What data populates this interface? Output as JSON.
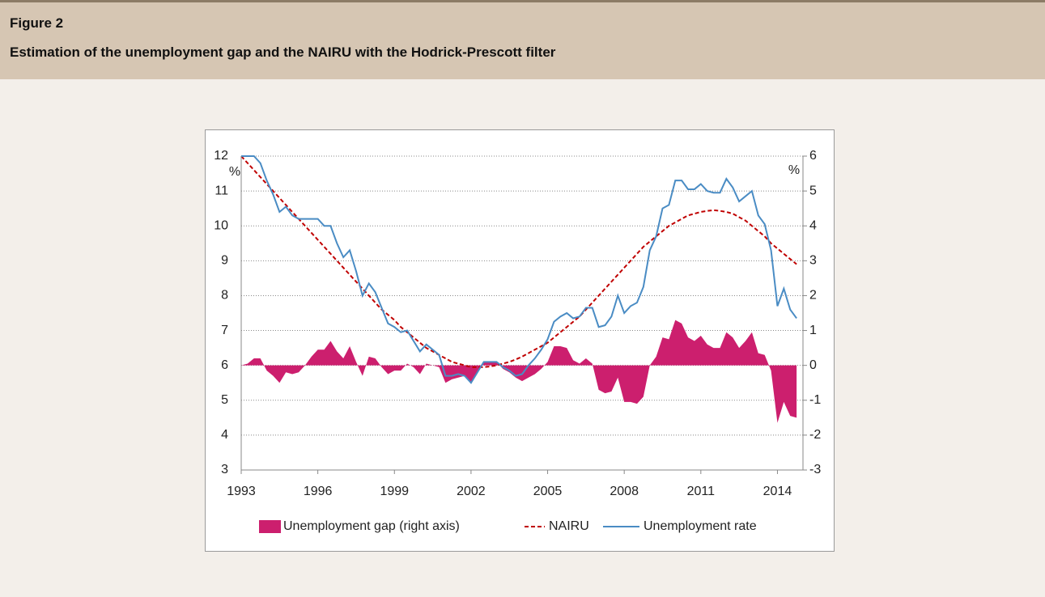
{
  "figure_label": "Figure 2",
  "chart_data": {
    "type": "line",
    "title": "Estimation of the unemployment gap and the NAIRU with the Hodrick-Prescott filter",
    "y_unit": "%",
    "y2_unit": "%",
    "x": [
      1993,
      1993.25,
      1993.5,
      1993.75,
      1994,
      1994.25,
      1994.5,
      1994.75,
      1995,
      1995.25,
      1995.5,
      1995.75,
      1996,
      1996.25,
      1996.5,
      1996.75,
      1997,
      1997.25,
      1997.5,
      1997.75,
      1998,
      1998.25,
      1998.5,
      1998.75,
      1999,
      1999.25,
      1999.5,
      1999.75,
      2000,
      2000.25,
      2000.5,
      2000.75,
      2001,
      2001.25,
      2001.5,
      2001.75,
      2002,
      2002.25,
      2002.5,
      2002.75,
      2003,
      2003.25,
      2003.5,
      2003.75,
      2004,
      2004.25,
      2004.5,
      2004.75,
      2005,
      2005.25,
      2005.5,
      2005.75,
      2006,
      2006.25,
      2006.5,
      2006.75,
      2007,
      2007.25,
      2007.5,
      2007.75,
      2008,
      2008.25,
      2008.5,
      2008.75,
      2009,
      2009.25,
      2009.5,
      2009.75,
      2010,
      2010.25,
      2010.5,
      2010.75,
      2011,
      2011.25,
      2011.5,
      2011.75,
      2012,
      2012.25,
      2012.5,
      2012.75,
      2013,
      2013.25,
      2013.5,
      2013.75,
      2014,
      2014.25,
      2014.5,
      2014.75
    ],
    "series": [
      {
        "name": "Unemployment gap (right axis)",
        "style": "area",
        "axis": "y2",
        "color": "#cc1f6e",
        "values": [
          0,
          0.05,
          0.2,
          0.2,
          -0.15,
          -0.3,
          -0.5,
          -0.2,
          -0.25,
          -0.2,
          0,
          0.25,
          0.45,
          0.45,
          0.7,
          0.4,
          0.2,
          0.55,
          0.1,
          -0.3,
          0.25,
          0.2,
          -0.05,
          -0.25,
          -0.15,
          -0.15,
          0.05,
          -0.05,
          -0.25,
          0.05,
          0,
          -0.05,
          -0.5,
          -0.4,
          -0.35,
          -0.3,
          -0.5,
          -0.2,
          0.1,
          0.1,
          0.1,
          -0.1,
          -0.2,
          -0.35,
          -0.45,
          -0.35,
          -0.25,
          -0.1,
          0.1,
          0.55,
          0.55,
          0.5,
          0.15,
          0.05,
          0.2,
          0.05,
          -0.7,
          -0.8,
          -0.75,
          -0.35,
          -1.05,
          -1.05,
          -1.1,
          -0.9,
          0,
          0.25,
          0.8,
          0.75,
          1.3,
          1.2,
          0.8,
          0.7,
          0.85,
          0.6,
          0.5,
          0.5,
          0.95,
          0.8,
          0.5,
          0.7,
          0.95,
          0.35,
          0.3,
          -0.15,
          -1.65,
          -1.05,
          -1.45,
          -1.5
        ]
      },
      {
        "name": "NAIRU",
        "style": "dashed",
        "color": "#c00000",
        "values": [
          12,
          11.8,
          11.6,
          11.4,
          11.2,
          11,
          10.8,
          10.6,
          10.4,
          10.2,
          10,
          9.8,
          9.6,
          9.4,
          9.2,
          9,
          8.8,
          8.6,
          8.4,
          8.2,
          8,
          7.8,
          7.6,
          7.45,
          7.3,
          7.1,
          6.95,
          6.8,
          6.65,
          6.5,
          6.4,
          6.3,
          6.2,
          6.1,
          6.05,
          6,
          5.95,
          5.95,
          5.95,
          5.97,
          6,
          6.05,
          6.1,
          6.17,
          6.25,
          6.35,
          6.45,
          6.55,
          6.65,
          6.8,
          6.95,
          7.1,
          7.25,
          7.4,
          7.6,
          7.8,
          8,
          8.2,
          8.4,
          8.6,
          8.8,
          9,
          9.2,
          9.4,
          9.55,
          9.7,
          9.85,
          10,
          10.1,
          10.2,
          10.3,
          10.35,
          10.4,
          10.43,
          10.45,
          10.43,
          10.4,
          10.35,
          10.25,
          10.15,
          10,
          9.85,
          9.7,
          9.5,
          9.35,
          9.2,
          9.05,
          8.9
        ]
      },
      {
        "name": "Unemployment rate",
        "style": "solid",
        "color": "#4a8cc4",
        "values": [
          12,
          12,
          12,
          11.8,
          11.3,
          10.9,
          10.4,
          10.55,
          10.3,
          10.2,
          10.2,
          10.2,
          10.2,
          10,
          10,
          9.5,
          9.1,
          9.3,
          8.7,
          8,
          8.35,
          8.1,
          7.65,
          7.2,
          7.1,
          6.95,
          7,
          6.7,
          6.4,
          6.6,
          6.45,
          6.3,
          5.7,
          5.7,
          5.75,
          5.7,
          5.5,
          5.8,
          6.1,
          6.1,
          6.1,
          5.95,
          5.85,
          5.7,
          5.75,
          6,
          6.2,
          6.45,
          6.75,
          7.25,
          7.4,
          7.5,
          7.35,
          7.4,
          7.65,
          7.65,
          7.1,
          7.15,
          7.4,
          8,
          7.5,
          7.7,
          7.8,
          8.25,
          9.3,
          9.7,
          10.5,
          10.6,
          11.3,
          11.3,
          11.05,
          11.05,
          11.2,
          11,
          10.95,
          10.95,
          11.35,
          11.1,
          10.7,
          10.85,
          11,
          10.3,
          10.05,
          9.3,
          7.7,
          8.2,
          7.6,
          7.35
        ]
      }
    ],
    "xlim": [
      1993,
      2015
    ],
    "xticks": [
      1993,
      1996,
      1999,
      2002,
      2005,
      2008,
      2011,
      2014
    ],
    "ylim": [
      3,
      12
    ],
    "yticks": [
      3,
      4,
      5,
      6,
      7,
      8,
      9,
      10,
      11,
      12
    ],
    "y2lim": [
      -3,
      6
    ],
    "y2ticks": [
      -3,
      -2,
      -1,
      0,
      1,
      2,
      3,
      4,
      5,
      6
    ],
    "grid": true
  }
}
